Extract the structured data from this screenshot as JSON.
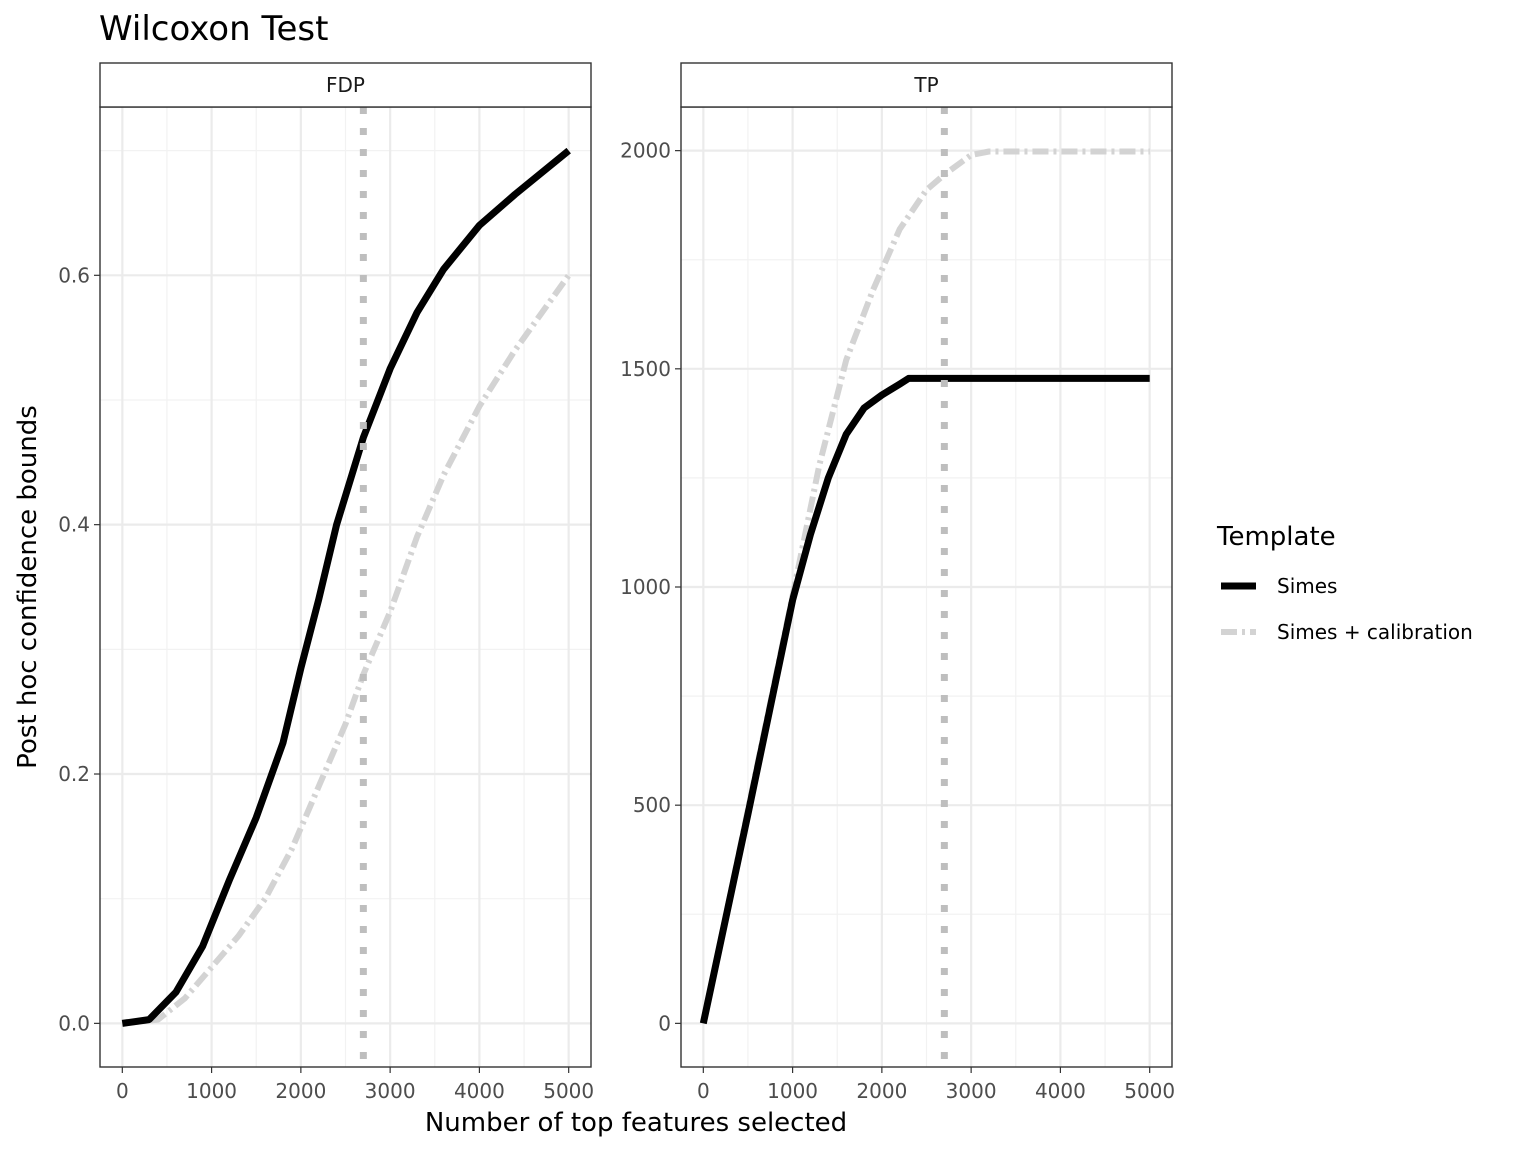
{
  "chart_data": {
    "type": "line",
    "title": "Wilcoxon Test",
    "xlabel": "Number of top features selected",
    "ylabel": "Post hoc confidence bounds",
    "legend": {
      "title": "Template",
      "position": "right",
      "entries": [
        "Simes",
        "Simes + calibration"
      ]
    },
    "grid": true,
    "reference_line": {
      "x": 2700,
      "style": "dotted",
      "color": "#bebebe"
    },
    "colors": {
      "Simes": "#000000",
      "Simes + calibration": "#d3d3d3"
    },
    "panels": [
      {
        "strip": "FDP",
        "xlim": [
          -250,
          5250
        ],
        "ylim": [
          -0.035,
          0.735
        ],
        "x_ticks": [
          "0",
          "1000",
          "2000",
          "3000",
          "4000",
          "5000"
        ],
        "y_ticks": [
          "0.0",
          "0.2",
          "0.4",
          "0.6"
        ],
        "series": [
          {
            "name": "Simes",
            "x": [
              0,
              300,
              600,
              900,
              1200,
              1500,
              1800,
              2000,
              2200,
              2400,
              2700,
              3000,
              3300,
              3600,
              4000,
              4400,
              5000
            ],
            "y": [
              0,
              0.003,
              0.025,
              0.062,
              0.115,
              0.165,
              0.225,
              0.285,
              0.34,
              0.4,
              0.47,
              0.525,
              0.57,
              0.605,
              0.64,
              0.665,
              0.7
            ]
          },
          {
            "name": "Simes + calibration",
            "x": [
              0,
              400,
              700,
              1000,
              1300,
              1600,
              1900,
              2200,
              2500,
              2700,
              3000,
              3300,
              3600,
              4000,
              4400,
              5000
            ],
            "y": [
              0,
              0.003,
              0.02,
              0.045,
              0.07,
              0.1,
              0.14,
              0.19,
              0.24,
              0.28,
              0.33,
              0.39,
              0.44,
              0.495,
              0.54,
              0.6
            ]
          }
        ]
      },
      {
        "strip": "TP",
        "xlim": [
          -250,
          5250
        ],
        "ylim": [
          -100,
          2100
        ],
        "x_ticks": [
          "0",
          "1000",
          "2000",
          "3000",
          "4000",
          "5000"
        ],
        "y_ticks": [
          "0",
          "500",
          "1000",
          "1500",
          "2000"
        ],
        "series": [
          {
            "name": "Simes",
            "x": [
              0,
              500,
              1000,
              1200,
              1400,
              1600,
              1800,
              2000,
              2200,
              2300,
              5000
            ],
            "y": [
              0,
              480,
              970,
              1120,
              1250,
              1350,
              1410,
              1440,
              1465,
              1478,
              1478
            ]
          },
          {
            "name": "Simes + calibration",
            "x": [
              0,
              500,
              1000,
              1300,
              1600,
              1900,
              2200,
              2500,
              2700,
              3000,
              3200,
              5000
            ],
            "y": [
              0,
              490,
              980,
              1280,
              1520,
              1680,
              1820,
              1910,
              1945,
              1990,
              1998,
              1998
            ]
          }
        ]
      }
    ]
  }
}
